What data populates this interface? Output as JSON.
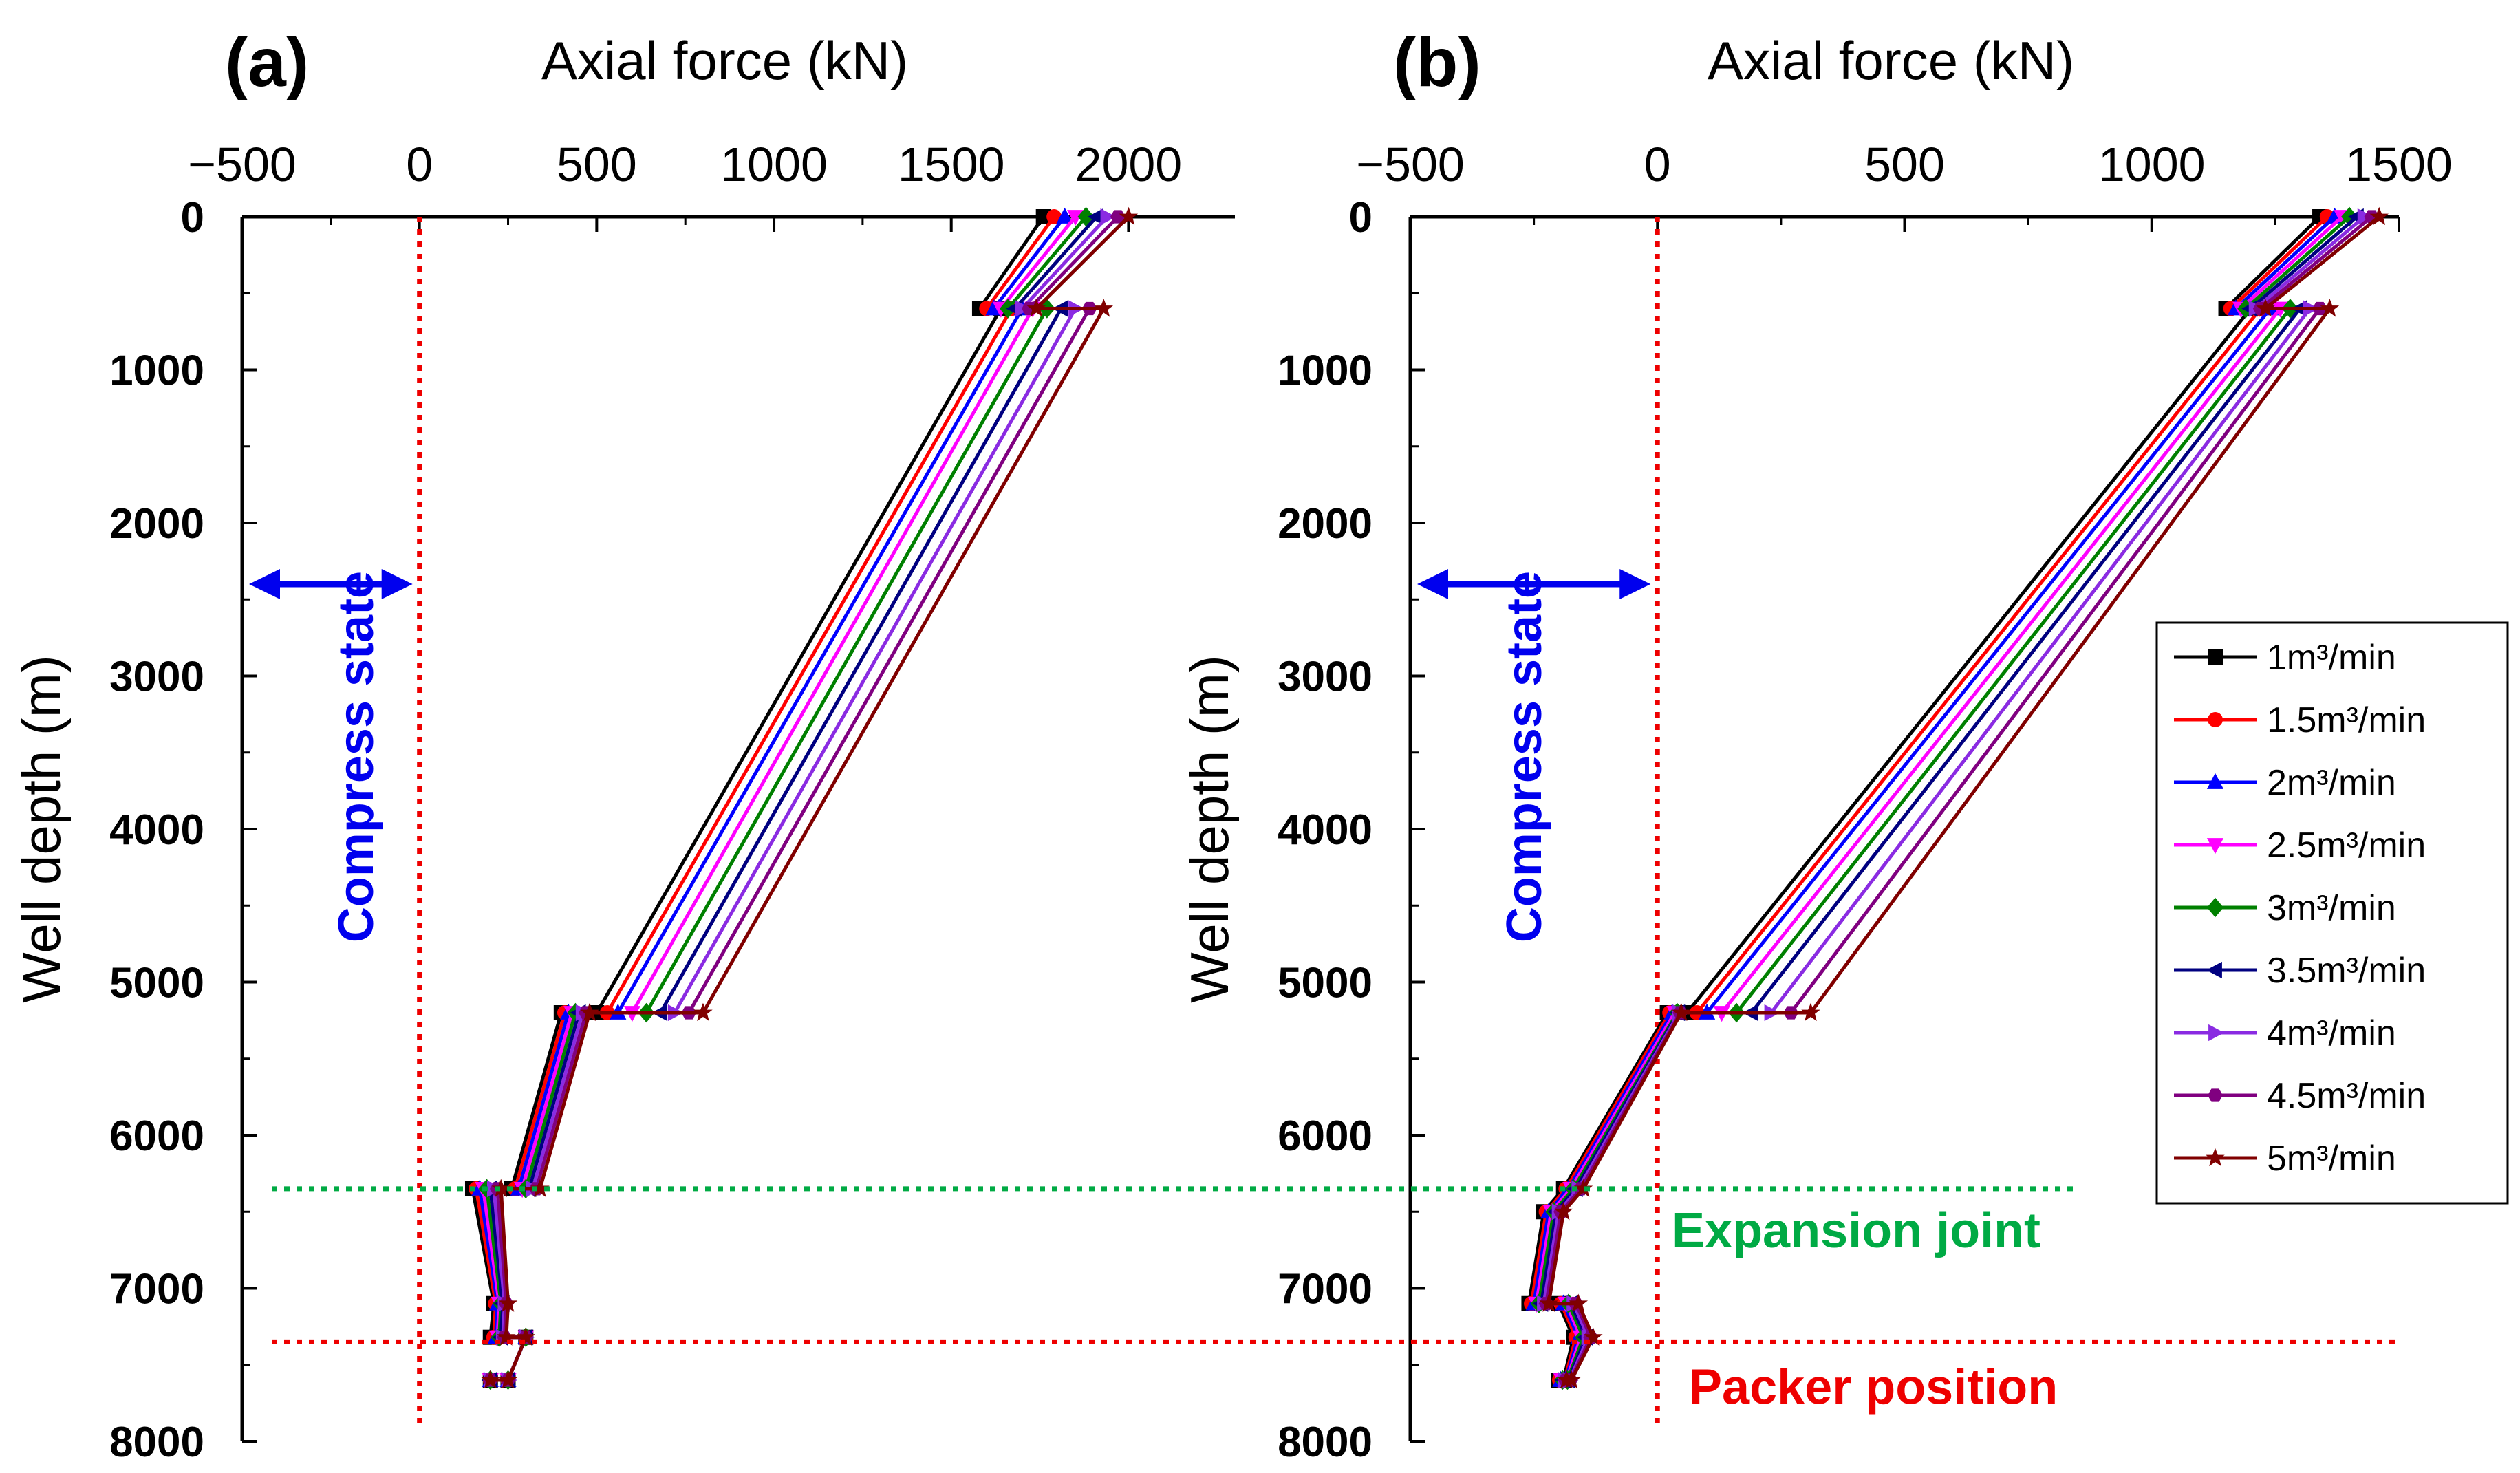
{
  "figure": {
    "annotations": {
      "compress_state": "Compress state",
      "expansion_joint": "Expansion joint",
      "packer_position": "Packer position"
    },
    "colors": {
      "compress": "#0000ee",
      "expansion": "#00aa44",
      "packer": "#ee0000"
    }
  },
  "chart_data": [
    {
      "type": "line",
      "panel_label": "(a)",
      "xlabel": "Axial force (kN)",
      "ylabel": "Well depth (m)",
      "xlim": [
        -500,
        2300
      ],
      "ylim": [
        8000,
        0
      ],
      "xticks": [
        -500,
        0,
        500,
        1000,
        1500,
        2000
      ],
      "yticks": [
        0,
        1000,
        2000,
        3000,
        4000,
        5000,
        6000,
        7000,
        8000
      ],
      "x_axis_position": "top",
      "compress_arrow": {
        "from": -500,
        "to": 0,
        "depth": 2400
      },
      "zero_line_x": 0,
      "expansion_joint_depth": 6350,
      "packer_depth": 7350,
      "series": [
        {
          "name": "1m³/min",
          "color": "#000000",
          "marker": "square",
          "x": [
            1760,
            1580,
            1640,
            500,
            400,
            260,
            150,
            210,
            200,
            300,
            250,
            200
          ],
          "y": [
            0,
            600,
            600,
            5200,
            5200,
            6350,
            6350,
            7100,
            7320,
            7320,
            7600,
            7600
          ]
        },
        {
          "name": "1.5m³/min",
          "color": "#ff0000",
          "marker": "circle",
          "x": [
            1790,
            1600,
            1670,
            530,
            410,
            270,
            160,
            215,
            210,
            300,
            250,
            200
          ],
          "y": [
            0,
            600,
            600,
            5200,
            5200,
            6350,
            6350,
            7100,
            7320,
            7320,
            7600,
            7600
          ]
        },
        {
          "name": "2m³/min",
          "color": "#0000ff",
          "marker": "triangle-up",
          "x": [
            1820,
            1620,
            1700,
            560,
            420,
            280,
            170,
            220,
            215,
            300,
            250,
            200
          ],
          "y": [
            0,
            600,
            600,
            5200,
            5200,
            6350,
            6350,
            7100,
            7320,
            7320,
            7600,
            7600
          ]
        },
        {
          "name": "2.5m³/min",
          "color": "#ff00ff",
          "marker": "triangle-down",
          "x": [
            1850,
            1640,
            1730,
            600,
            430,
            290,
            180,
            225,
            220,
            300,
            250,
            200
          ],
          "y": [
            0,
            600,
            600,
            5200,
            5200,
            6350,
            6350,
            7100,
            7320,
            7320,
            7600,
            7600
          ]
        },
        {
          "name": "3m³/min",
          "color": "#008000",
          "marker": "diamond",
          "x": [
            1880,
            1660,
            1770,
            640,
            440,
            300,
            190,
            230,
            225,
            300,
            250,
            200
          ],
          "y": [
            0,
            600,
            600,
            5200,
            5200,
            6350,
            6350,
            7100,
            7320,
            7320,
            7600,
            7600
          ]
        },
        {
          "name": "3.5m³/min",
          "color": "#000080",
          "marker": "triangle-left",
          "x": [
            1910,
            1680,
            1810,
            680,
            450,
            310,
            200,
            235,
            230,
            300,
            250,
            200
          ],
          "y": [
            0,
            600,
            600,
            5200,
            5200,
            6350,
            6350,
            7100,
            7320,
            7320,
            7600,
            7600
          ]
        },
        {
          "name": "4m³/min",
          "color": "#8a2be2",
          "marker": "triangle-right",
          "x": [
            1940,
            1700,
            1850,
            720,
            460,
            320,
            210,
            240,
            235,
            300,
            250,
            200
          ],
          "y": [
            0,
            600,
            600,
            5200,
            5200,
            6350,
            6350,
            7100,
            7320,
            7320,
            7600,
            7600
          ]
        },
        {
          "name": "4.5m³/min",
          "color": "#800080",
          "marker": "hexagon",
          "x": [
            1970,
            1720,
            1890,
            760,
            470,
            330,
            220,
            245,
            240,
            300,
            250,
            200
          ],
          "y": [
            0,
            600,
            600,
            5200,
            5200,
            6350,
            6350,
            7100,
            7320,
            7320,
            7600,
            7600
          ]
        },
        {
          "name": "5m³/min",
          "color": "#800000",
          "marker": "star",
          "x": [
            2000,
            1740,
            1930,
            800,
            480,
            340,
            230,
            250,
            245,
            300,
            250,
            200
          ],
          "y": [
            0,
            600,
            600,
            5200,
            5200,
            6350,
            6350,
            7100,
            7320,
            7320,
            7600,
            7600
          ]
        }
      ]
    },
    {
      "type": "line",
      "panel_label": "(b)",
      "xlabel": "Axial force (kN)",
      "ylabel": "Well depth (m)",
      "xlim": [
        -500,
        1500
      ],
      "ylim": [
        8000,
        0
      ],
      "xticks": [
        -500,
        0,
        500,
        1000,
        1500
      ],
      "yticks": [
        0,
        1000,
        2000,
        3000,
        4000,
        5000,
        6000,
        7000,
        8000
      ],
      "x_axis_position": "top",
      "compress_arrow": {
        "from": -500,
        "to": 0,
        "depth": 2400
      },
      "zero_line_x": 0,
      "expansion_joint_depth": 6350,
      "packer_depth": 7350,
      "legend_position": "right",
      "series": [
        {
          "name": "1m³/min",
          "color": "#000000",
          "marker": "square",
          "x": [
            1340,
            1150,
            1200,
            60,
            20,
            -190,
            -230,
            -260,
            -200,
            -170,
            -190,
            -200
          ],
          "y": [
            0,
            600,
            600,
            5200,
            5200,
            6350,
            6500,
            7100,
            7100,
            7320,
            7600,
            7600
          ]
        },
        {
          "name": "1.5m³/min",
          "color": "#ff0000",
          "marker": "circle",
          "x": [
            1355,
            1160,
            1220,
            80,
            25,
            -185,
            -225,
            -255,
            -195,
            -165,
            -188,
            -198
          ],
          "y": [
            0,
            600,
            600,
            5200,
            5200,
            6350,
            6500,
            7100,
            7100,
            7320,
            7600,
            7600
          ]
        },
        {
          "name": "2m³/min",
          "color": "#0000ff",
          "marker": "triangle-up",
          "x": [
            1370,
            1170,
            1240,
            100,
            30,
            -180,
            -220,
            -250,
            -190,
            -160,
            -186,
            -196
          ],
          "y": [
            0,
            600,
            600,
            5200,
            5200,
            6350,
            6500,
            7100,
            7100,
            7320,
            7600,
            7600
          ]
        },
        {
          "name": "2.5m³/min",
          "color": "#ff00ff",
          "marker": "triangle-down",
          "x": [
            1385,
            1180,
            1260,
            130,
            35,
            -175,
            -215,
            -245,
            -185,
            -155,
            -184,
            -194
          ],
          "y": [
            0,
            600,
            600,
            5200,
            5200,
            6350,
            6500,
            7100,
            7100,
            7320,
            7600,
            7600
          ]
        },
        {
          "name": "3m³/min",
          "color": "#008000",
          "marker": "diamond",
          "x": [
            1400,
            1190,
            1280,
            160,
            40,
            -170,
            -210,
            -240,
            -180,
            -150,
            -182,
            -192
          ],
          "y": [
            0,
            600,
            600,
            5200,
            5200,
            6350,
            6500,
            7100,
            7100,
            7320,
            7600,
            7600
          ]
        },
        {
          "name": "3.5m³/min",
          "color": "#000080",
          "marker": "triangle-left",
          "x": [
            1415,
            1200,
            1300,
            190,
            42,
            -165,
            -205,
            -235,
            -175,
            -145,
            -180,
            -190
          ],
          "y": [
            0,
            600,
            600,
            5200,
            5200,
            6350,
            6500,
            7100,
            7100,
            7320,
            7600,
            7600
          ]
        },
        {
          "name": "4m³/min",
          "color": "#8a2be2",
          "marker": "triangle-right",
          "x": [
            1430,
            1210,
            1320,
            230,
            44,
            -160,
            -200,
            -230,
            -170,
            -140,
            -178,
            -188
          ],
          "y": [
            0,
            600,
            600,
            5200,
            5200,
            6350,
            6500,
            7100,
            7100,
            7320,
            7600,
            7600
          ]
        },
        {
          "name": "4.5m³/min",
          "color": "#800080",
          "marker": "hexagon",
          "x": [
            1445,
            1220,
            1340,
            270,
            46,
            -155,
            -195,
            -225,
            -165,
            -135,
            -176,
            -186
          ],
          "y": [
            0,
            600,
            600,
            5200,
            5200,
            6350,
            6500,
            7100,
            7100,
            7320,
            7600,
            7600
          ]
        },
        {
          "name": "5m³/min",
          "color": "#800000",
          "marker": "star",
          "x": [
            1460,
            1230,
            1360,
            310,
            48,
            -150,
            -190,
            -220,
            -160,
            -130,
            -174,
            -184
          ],
          "y": [
            0,
            600,
            600,
            5200,
            5200,
            6350,
            6500,
            7100,
            7100,
            7320,
            7600,
            7600
          ]
        }
      ]
    }
  ]
}
